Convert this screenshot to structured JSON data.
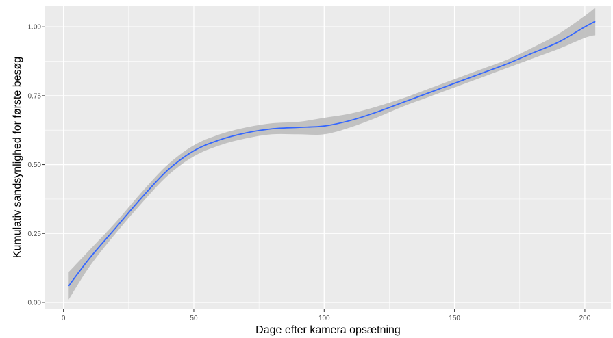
{
  "chart_data": {
    "type": "line",
    "title": "",
    "xlabel": "Dage efter kamera opsætning",
    "ylabel": "Kumulativ sandsynlighed for første besøg",
    "xlim": [
      -7,
      210
    ],
    "ylim": [
      -0.025,
      1.075
    ],
    "x_ticks": [
      0,
      50,
      100,
      150,
      200
    ],
    "x_tick_labels": [
      "0",
      "50",
      "100",
      "150",
      "200"
    ],
    "y_ticks": [
      0.0,
      0.25,
      0.5,
      0.75,
      1.0
    ],
    "y_tick_labels": [
      "0.00",
      "0.25",
      "0.50",
      "0.75",
      "1.00"
    ],
    "grid": true,
    "legend": "none",
    "colors": {
      "panel": "#ebebeb",
      "grid": "#ffffff",
      "line": "#3366ff",
      "ribbon": "#bdbdbd"
    },
    "series": [
      {
        "x": [
          2,
          10,
          20,
          30,
          40,
          50,
          60,
          70,
          80,
          90,
          100,
          110,
          120,
          130,
          140,
          150,
          160,
          170,
          180,
          190,
          200,
          204
        ],
        "y": [
          0.06,
          0.16,
          0.27,
          0.38,
          0.48,
          0.55,
          0.59,
          0.615,
          0.63,
          0.635,
          0.64,
          0.66,
          0.69,
          0.725,
          0.76,
          0.795,
          0.83,
          0.865,
          0.905,
          0.945,
          1.0,
          1.02
        ],
        "lower": [
          0.01,
          0.13,
          0.25,
          0.36,
          0.46,
          0.53,
          0.57,
          0.595,
          0.61,
          0.61,
          0.61,
          0.635,
          0.67,
          0.71,
          0.745,
          0.78,
          0.815,
          0.85,
          0.885,
          0.92,
          0.96,
          0.97
        ],
        "upper": [
          0.11,
          0.19,
          0.29,
          0.4,
          0.5,
          0.57,
          0.61,
          0.635,
          0.65,
          0.655,
          0.67,
          0.685,
          0.71,
          0.74,
          0.775,
          0.81,
          0.845,
          0.88,
          0.925,
          0.975,
          1.04,
          1.07
        ]
      }
    ]
  }
}
